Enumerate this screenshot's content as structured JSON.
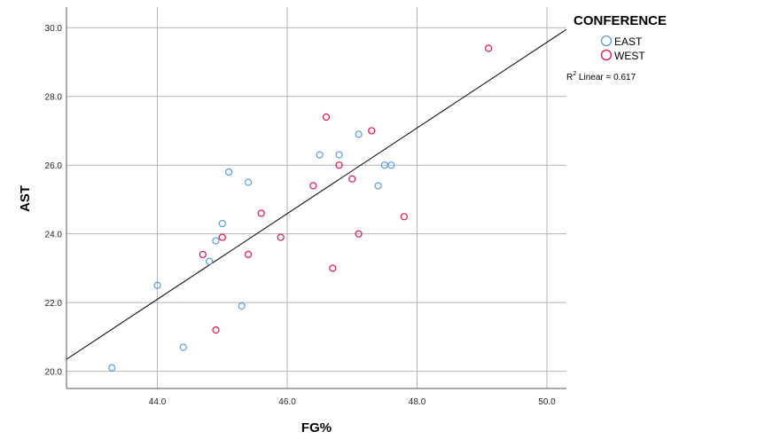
{
  "chart_data": {
    "type": "scatter",
    "title": "",
    "xlabel": "FG%",
    "ylabel": "AST",
    "xlim": [
      42.6,
      50.3
    ],
    "ylim": [
      19.5,
      30.6
    ],
    "x_ticks": [
      44.0,
      46.0,
      48.0,
      50.0
    ],
    "x_tick_labels": [
      "44.0",
      "46.0",
      "48.0",
      "50.0"
    ],
    "y_ticks": [
      20.0,
      22.0,
      24.0,
      26.0,
      28.0,
      30.0
    ],
    "y_tick_labels": [
      "20.0",
      "22.0",
      "24.0",
      "26.0",
      "28.0",
      "30.0"
    ],
    "grid": true,
    "legend": {
      "title": "CONFERENCE",
      "placement": "top-right-outside",
      "entries": [
        {
          "name": "EAST",
          "color": "#5b9bd5"
        },
        {
          "name": "WEST",
          "color": "#d6174b"
        }
      ]
    },
    "fit_line": {
      "type": "linear",
      "label_prefix": "R",
      "label_sup": "2",
      "label_suffix": " Linear = 0.617",
      "color": "#000000",
      "points": [
        [
          42.6,
          20.35
        ],
        [
          50.3,
          29.95
        ]
      ]
    },
    "series": [
      {
        "name": "EAST",
        "color": "#5b9bd5",
        "points": [
          [
            43.3,
            20.1
          ],
          [
            44.0,
            22.5
          ],
          [
            44.4,
            20.7
          ],
          [
            44.8,
            23.2
          ],
          [
            44.9,
            23.8
          ],
          [
            45.0,
            24.3
          ],
          [
            45.1,
            25.8
          ],
          [
            45.3,
            21.9
          ],
          [
            45.4,
            25.5
          ],
          [
            46.5,
            26.3
          ],
          [
            46.8,
            26.3
          ],
          [
            47.1,
            26.9
          ],
          [
            47.4,
            25.4
          ],
          [
            47.5,
            26.0
          ],
          [
            47.6,
            26.0
          ]
        ]
      },
      {
        "name": "WEST",
        "color": "#d6174b",
        "points": [
          [
            44.7,
            23.4
          ],
          [
            44.9,
            21.2
          ],
          [
            45.0,
            23.9
          ],
          [
            45.4,
            23.4
          ],
          [
            45.6,
            24.6
          ],
          [
            45.9,
            23.9
          ],
          [
            46.4,
            25.4
          ],
          [
            46.6,
            27.4
          ],
          [
            46.7,
            23.0
          ],
          [
            46.8,
            26.0
          ],
          [
            47.0,
            25.6
          ],
          [
            47.1,
            24.0
          ],
          [
            47.3,
            27.0
          ],
          [
            47.8,
            24.5
          ],
          [
            49.1,
            29.4
          ]
        ]
      }
    ]
  }
}
